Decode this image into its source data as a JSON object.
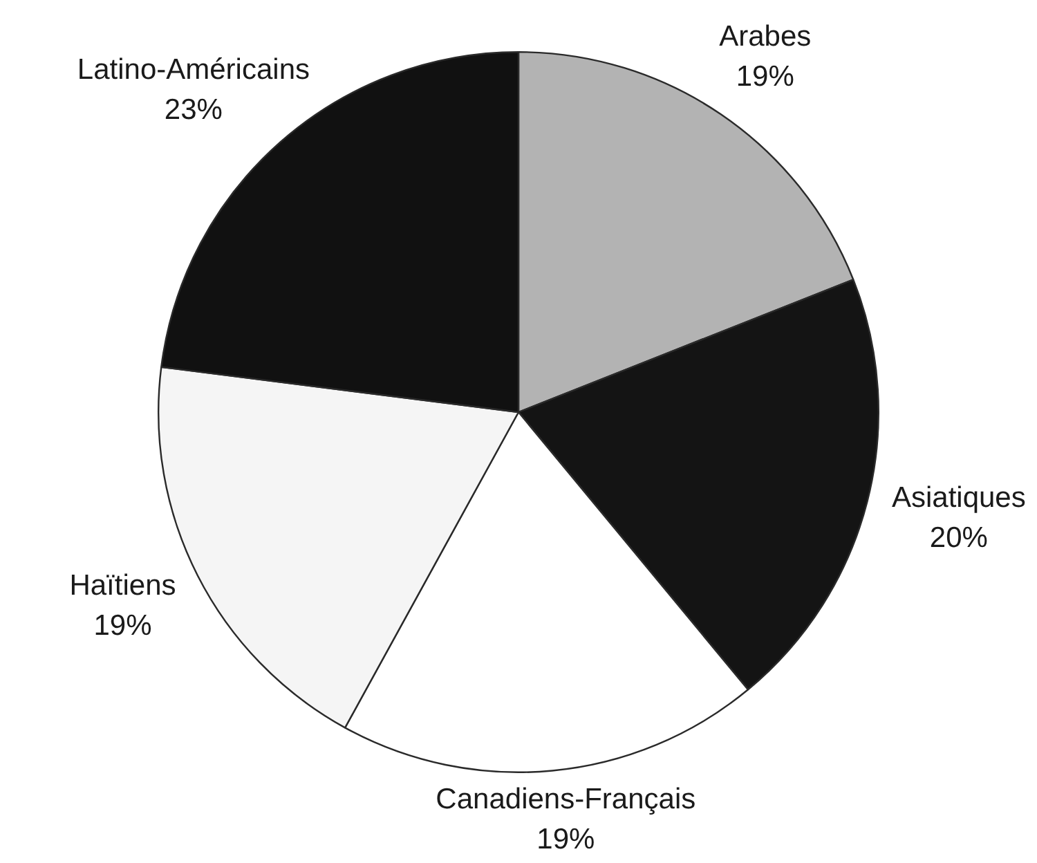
{
  "chart_data": {
    "type": "pie",
    "categories": [
      "Arabes",
      "Asiatiques",
      "Canadiens-Français",
      "Haïtiens",
      "Latino-Américains"
    ],
    "values": [
      19,
      20,
      19,
      19,
      23
    ],
    "value_labels": [
      "19%",
      "20%",
      "19%",
      "19%",
      "23%"
    ],
    "colors": [
      "#b3b3b3",
      "#141414",
      "#ffffff",
      "#f5f5f5",
      "#111111"
    ]
  }
}
